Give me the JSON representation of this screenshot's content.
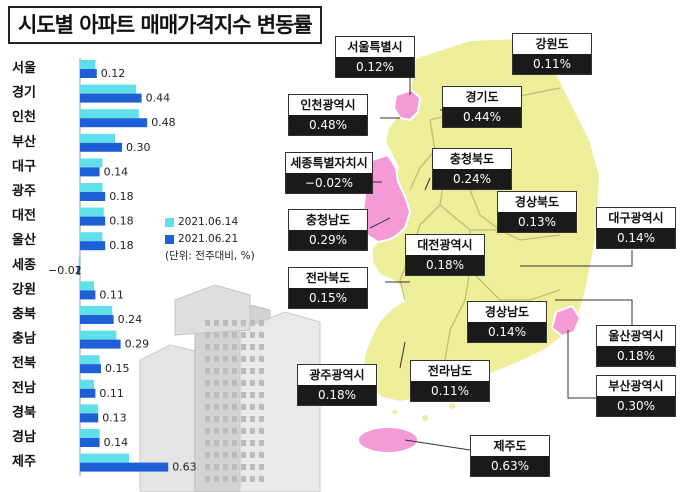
{
  "title": "시도별 아파트 매매가격지수 변동률",
  "legend": {
    "series1": "2021.06.14",
    "series2": "2021.06.21",
    "unit": "(단위: 전주대비, %)"
  },
  "colors": {
    "series1": "#5fe0e8",
    "series2": "#1f5fd6",
    "map_yellow": "#eeee9a",
    "map_pink": "#f49ad6",
    "label_dark": "#1a1a1a"
  },
  "chart_data": {
    "type": "bar",
    "orientation": "horizontal",
    "categories": [
      "서울",
      "경기",
      "인천",
      "부산",
      "대구",
      "광주",
      "대전",
      "울산",
      "세종",
      "강원",
      "충북",
      "충남",
      "전북",
      "전남",
      "경북",
      "경남",
      "제주"
    ],
    "series": [
      {
        "name": "2021.06.14",
        "values": [
          0.11,
          0.4,
          0.42,
          0.25,
          0.16,
          0.16,
          0.17,
          0.16,
          -0.01,
          0.1,
          0.23,
          0.26,
          0.14,
          0.1,
          0.13,
          0.14,
          0.35
        ]
      },
      {
        "name": "2021.06.21",
        "values": [
          0.12,
          0.44,
          0.48,
          0.3,
          0.14,
          0.18,
          0.18,
          0.18,
          -0.02,
          0.11,
          0.24,
          0.29,
          0.15,
          0.11,
          0.13,
          0.14,
          0.63
        ]
      }
    ],
    "value_labels": [
      "0.12",
      "0.44",
      "0.48",
      "0.30",
      "0.14",
      "0.18",
      "0.18",
      "0.18",
      "−0.02",
      "0.11",
      "0.24",
      "0.29",
      "0.15",
      "0.11",
      "0.13",
      "0.14",
      "0.63"
    ]
  },
  "map_labels": [
    {
      "name": "서울특별시",
      "value": "0.12%"
    },
    {
      "name": "강원도",
      "value": "0.11%"
    },
    {
      "name": "인천광역시",
      "value": "0.48%"
    },
    {
      "name": "경기도",
      "value": "0.44%"
    },
    {
      "name": "세종특별자치시",
      "value": "−0.02%"
    },
    {
      "name": "충청북도",
      "value": "0.24%"
    },
    {
      "name": "경상북도",
      "value": "0.13%"
    },
    {
      "name": "충청남도",
      "value": "0.29%"
    },
    {
      "name": "대전광역시",
      "value": "0.18%"
    },
    {
      "name": "대구광역시",
      "value": "0.14%"
    },
    {
      "name": "전라북도",
      "value": "0.15%"
    },
    {
      "name": "경상남도",
      "value": "0.14%"
    },
    {
      "name": "울산광역시",
      "value": "0.18%"
    },
    {
      "name": "광주광역시",
      "value": "0.18%"
    },
    {
      "name": "전라남도",
      "value": "0.11%"
    },
    {
      "name": "부산광역시",
      "value": "0.30%"
    },
    {
      "name": "제주도",
      "value": "0.63%"
    }
  ]
}
